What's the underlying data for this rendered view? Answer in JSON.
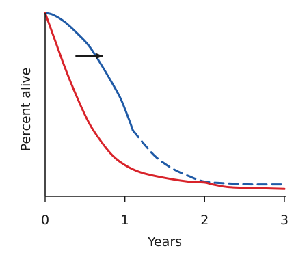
{
  "chart_data": {
    "type": "line",
    "title": "",
    "xlabel": "Years",
    "ylabel": "Percent alive",
    "xlim": [
      0,
      3
    ],
    "ylim": [
      0,
      100
    ],
    "x_ticks": [
      "0",
      "1",
      "2",
      "3"
    ],
    "grid": false,
    "legend": "none",
    "series": [
      {
        "color": "#1f5aa6",
        "style": "solid",
        "points": [
          [
            0,
            100
          ],
          [
            0.1,
            99
          ],
          [
            0.25,
            95
          ],
          [
            0.4,
            89
          ],
          [
            0.55,
            82
          ],
          [
            0.7,
            72
          ],
          [
            0.85,
            61
          ],
          [
            0.95,
            53
          ],
          [
            1.05,
            42
          ],
          [
            1.1,
            36
          ]
        ]
      },
      {
        "color": "#1f5aa6",
        "style": "dashed",
        "points": [
          [
            1.1,
            36
          ],
          [
            1.25,
            28
          ],
          [
            1.4,
            21
          ],
          [
            1.6,
            15
          ],
          [
            1.8,
            11
          ],
          [
            2.0,
            8
          ],
          [
            2.3,
            7
          ],
          [
            2.6,
            6.5
          ],
          [
            3.0,
            6.5
          ]
        ]
      },
      {
        "color": "#d8232a",
        "style": "solid",
        "points": [
          [
            0,
            100
          ],
          [
            0.1,
            88
          ],
          [
            0.25,
            70
          ],
          [
            0.4,
            54
          ],
          [
            0.55,
            40
          ],
          [
            0.7,
            30
          ],
          [
            0.85,
            22
          ],
          [
            1.0,
            17
          ],
          [
            1.2,
            13
          ],
          [
            1.5,
            10
          ],
          [
            1.8,
            8
          ],
          [
            2.0,
            7.5
          ],
          [
            2.1,
            6.5
          ],
          [
            2.3,
            5
          ],
          [
            2.6,
            4.5
          ],
          [
            3.0,
            4
          ]
        ]
      }
    ],
    "annotations": [
      {
        "type": "arrow",
        "color": "#1a1a1a",
        "from": [
          0.38,
          76.5
        ],
        "to": [
          0.72,
          76.5
        ]
      }
    ]
  }
}
